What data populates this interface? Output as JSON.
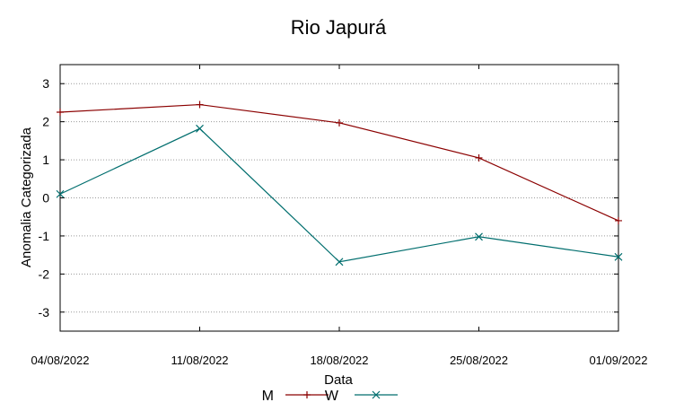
{
  "chart_data": {
    "type": "line",
    "title": "Rio Japurá",
    "xlabel": "Data",
    "ylabel": "Anomalia Categorizada",
    "categories": [
      "04/08/2022",
      "11/08/2022",
      "18/08/2022",
      "25/08/2022",
      "01/09/2022"
    ],
    "ylim": [
      -3.5,
      3.5
    ],
    "yticks": [
      -3,
      -2,
      -1,
      0,
      1,
      2,
      3
    ],
    "ytick_labels": [
      "-3",
      "-2",
      "-1",
      "0",
      "1",
      "2",
      "3"
    ],
    "grid": true,
    "legend_position": "bottom-center",
    "series": [
      {
        "name": "M",
        "color": "#8b0000",
        "marker": "plus",
        "values": [
          2.25,
          2.45,
          1.97,
          1.05,
          -0.6
        ]
      },
      {
        "name": "W",
        "color": "#006e6e",
        "marker": "cross",
        "values": [
          0.1,
          1.82,
          -1.68,
          -1.02,
          -1.55
        ]
      }
    ]
  }
}
